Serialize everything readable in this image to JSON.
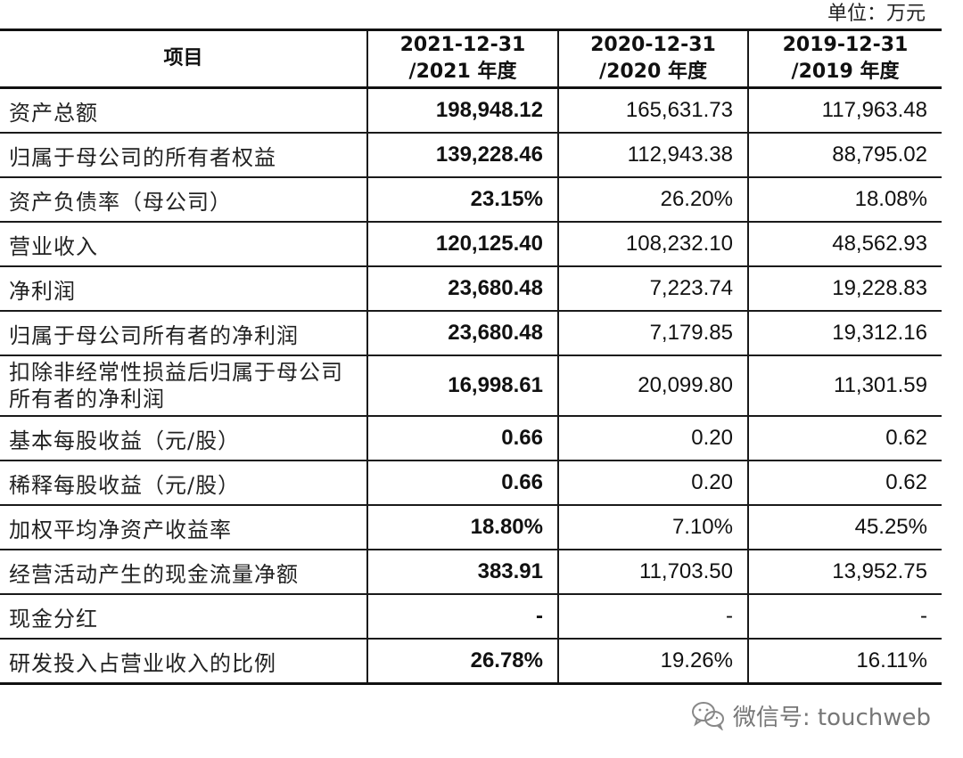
{
  "unit_label": "单位：万元",
  "table": {
    "headers": [
      {
        "line1": "项目",
        "line2": ""
      },
      {
        "line1": "2021-12-31",
        "line2": "/2021 年度"
      },
      {
        "line1": "2020-12-31",
        "line2": "/2020 年度"
      },
      {
        "line1": "2019-12-31",
        "line2": "/2019 年度"
      }
    ],
    "rows": [
      {
        "label": "资产总额",
        "values": [
          "198,948.12",
          "165,631.73",
          "117,963.48"
        ]
      },
      {
        "label": "归属于母公司的所有者权益",
        "values": [
          "139,228.46",
          "112,943.38",
          "88,795.02"
        ]
      },
      {
        "label": "资产负债率（母公司）",
        "values": [
          "23.15%",
          "26.20%",
          "18.08%"
        ]
      },
      {
        "label": "营业收入",
        "values": [
          "120,125.40",
          "108,232.10",
          "48,562.93"
        ]
      },
      {
        "label": "净利润",
        "values": [
          "23,680.48",
          "7,223.74",
          "19,228.83"
        ]
      },
      {
        "label": "归属于母公司所有者的净利润",
        "values": [
          "23,680.48",
          "7,179.85",
          "19,312.16"
        ]
      },
      {
        "label": "扣除非经常性损益后归属于母公司所有者的净利润",
        "values": [
          "16,998.61",
          "20,099.80",
          "11,301.59"
        ]
      },
      {
        "label": "基本每股收益（元/股）",
        "values": [
          "0.66",
          "0.20",
          "0.62"
        ]
      },
      {
        "label": "稀释每股收益（元/股）",
        "values": [
          "0.66",
          "0.20",
          "0.62"
        ]
      },
      {
        "label": "加权平均净资产收益率",
        "values": [
          "18.80%",
          "7.10%",
          "45.25%"
        ]
      },
      {
        "label": "经营活动产生的现金流量净额",
        "values": [
          "383.91",
          "11,703.50",
          "13,952.75"
        ]
      },
      {
        "label": "现金分红",
        "values": [
          "-",
          "-",
          "-"
        ]
      },
      {
        "label": "研发投入占营业收入的比例",
        "values": [
          "26.78%",
          "19.26%",
          "16.11%"
        ]
      }
    ]
  },
  "watermark": {
    "icon": "wechat-icon",
    "text": "微信号: touchweb",
    "color": "#777777"
  }
}
